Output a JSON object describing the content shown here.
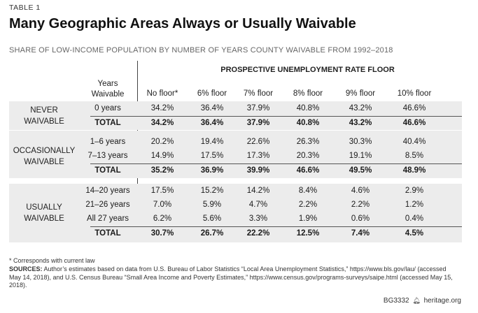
{
  "table_label": "TABLE 1",
  "title": "Many Geographic Areas Always or Usually Waivable",
  "subtitle": "SHARE OF LOW-INCOME POPULATION BY NUMBER OF YEARS COUNTY WAIVABLE FROM 1992–2018",
  "super_header": "PROSPECTIVE UNEMPLOYMENT RATE FLOOR",
  "years_header_line1": "Years",
  "years_header_line2": "Waivable",
  "columns": [
    "No floor*",
    "6% floor",
    "7% floor",
    "8% floor",
    "9% floor",
    "10% floor"
  ],
  "groups": [
    {
      "label_line1": "NEVER",
      "label_line2": "WAIVABLE",
      "rows": [
        {
          "years": "0 years",
          "values": [
            "34.2%",
            "36.4%",
            "37.9%",
            "40.8%",
            "43.2%",
            "46.6%"
          ]
        }
      ],
      "total": {
        "years": "TOTAL",
        "values": [
          "34.2%",
          "36.4%",
          "37.9%",
          "40.8%",
          "43.2%",
          "46.6%"
        ]
      }
    },
    {
      "label_line1": "OCCASIONALLY",
      "label_line2": "WAIVABLE",
      "rows": [
        {
          "years": "1–6 years",
          "values": [
            "20.2%",
            "19.4%",
            "22.6%",
            "26.3%",
            "30.3%",
            "40.4%"
          ]
        },
        {
          "years": "7–13 years",
          "values": [
            "14.9%",
            "17.5%",
            "17.3%",
            "20.3%",
            "19.1%",
            "8.5%"
          ]
        }
      ],
      "total": {
        "years": "TOTAL",
        "values": [
          "35.2%",
          "36.9%",
          "39.9%",
          "46.6%",
          "49.5%",
          "48.9%"
        ]
      }
    },
    {
      "label_line1": "USUALLY",
      "label_line2": "WAIVABLE",
      "rows": [
        {
          "years": "14–20 years",
          "values": [
            "17.5%",
            "15.2%",
            "14.2%",
            "8.4%",
            "4.6%",
            "2.9%"
          ]
        },
        {
          "years": "21–26 years",
          "values": [
            "7.0%",
            "5.9%",
            "4.7%",
            "2.2%",
            "2.2%",
            "1.2%"
          ]
        },
        {
          "years": "All 27 years",
          "values": [
            "6.2%",
            "5.6%",
            "3.3%",
            "1.9%",
            "0.6%",
            "0.4%"
          ]
        }
      ],
      "total": {
        "years": "TOTAL",
        "values": [
          "30.7%",
          "26.7%",
          "22.2%",
          "12.5%",
          "7.4%",
          "4.5%"
        ]
      }
    }
  ],
  "footnote": "* Corresponds with current law",
  "sources_label": "SOURCES:",
  "sources_text": " Author’s estimates based on data from U.S. Bureau of Labor Statistics “Local Area Unemployment Statistics,” https://www.bls.gov/lau/ (accessed May 14, 2018), and U.S. Census Bureau “Small Area Income and Poverty Estimates,” https://www.census.gov/programs-surveys/saipe.html (accessed May 15, 2018).",
  "footer_code": "BG3332",
  "footer_site": "heritage.org",
  "bell_icon": "bell-icon",
  "colors": {
    "band": "#ececec",
    "rule": "#555555"
  }
}
